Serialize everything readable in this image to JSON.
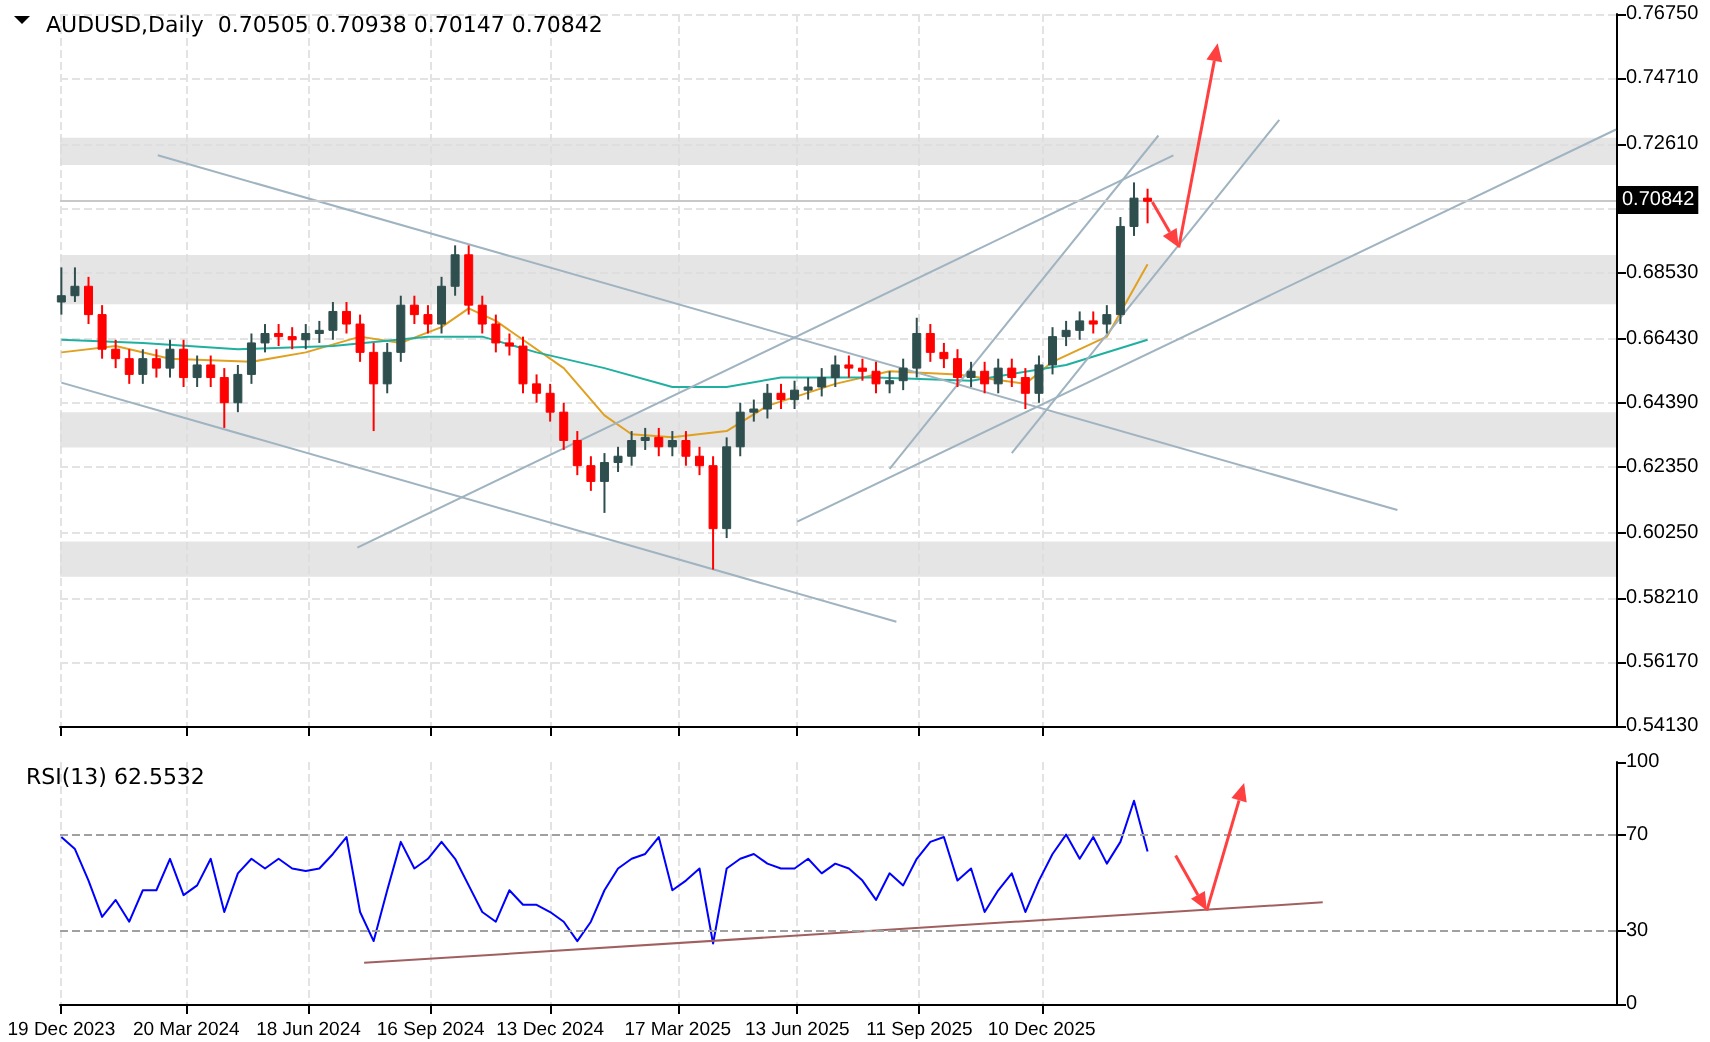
{
  "chart_data": [
    {
      "type": "candlestick",
      "title": "AUDUSD,Daily  0.70505 0.70938 0.70147 0.70842",
      "tick_labels": "y",
      "grid": true,
      "x": [
        "2023-12-19",
        "2023-12-29",
        "2024-01-08",
        "2024-01-18",
        "2024-01-28",
        "2024-02-07",
        "2024-02-17",
        "2024-02-27",
        "2024-03-08",
        "2024-03-18",
        "2024-03-28",
        "2024-04-07",
        "2024-04-17",
        "2024-04-27",
        "2024-05-07",
        "2024-05-17",
        "2024-05-27",
        "2024-06-06",
        "2024-06-16",
        "2024-06-26",
        "2024-07-06",
        "2024-07-16",
        "2024-07-26",
        "2024-08-05",
        "2024-08-15",
        "2024-08-25",
        "2024-09-04",
        "2024-09-14",
        "2024-09-24",
        "2024-10-04",
        "2024-10-14",
        "2024-10-24",
        "2024-11-03",
        "2024-11-13",
        "2024-11-23",
        "2024-12-03",
        "2024-12-13",
        "2024-12-23",
        "2025-01-02",
        "2025-01-12",
        "2025-01-22",
        "2025-02-01",
        "2025-02-11",
        "2025-02-21",
        "2025-03-03",
        "2025-03-13",
        "2025-03-23",
        "2025-04-02",
        "2025-04-12",
        "2025-04-22",
        "2025-05-02",
        "2025-05-12",
        "2025-05-22",
        "2025-06-01",
        "2025-06-11",
        "2025-06-21",
        "2025-07-01",
        "2025-07-11",
        "2025-07-21",
        "2025-07-31",
        "2025-08-10",
        "2025-08-20",
        "2025-08-30",
        "2025-09-09",
        "2025-09-19",
        "2025-09-29",
        "2025-10-09",
        "2025-10-19",
        "2025-10-29",
        "2025-11-08",
        "2025-11-18",
        "2025-11-28",
        "2025-12-08",
        "2025-12-18",
        "2025-12-28",
        "2026-01-07",
        "2026-01-17",
        "2026-01-27",
        "2026-02-06",
        "2026-02-16",
        "2026-02-26"
      ],
      "ohlc": [
        [
          0.676,
          0.687,
          0.672,
          0.678
        ],
        [
          0.678,
          0.687,
          0.676,
          0.681
        ],
        [
          0.681,
          0.684,
          0.669,
          0.672
        ],
        [
          0.672,
          0.675,
          0.658,
          0.661
        ],
        [
          0.661,
          0.664,
          0.655,
          0.658
        ],
        [
          0.658,
          0.661,
          0.65,
          0.653
        ],
        [
          0.653,
          0.661,
          0.65,
          0.658
        ],
        [
          0.658,
          0.661,
          0.652,
          0.655
        ],
        [
          0.655,
          0.664,
          0.652,
          0.661
        ],
        [
          0.661,
          0.664,
          0.649,
          0.652
        ],
        [
          0.652,
          0.659,
          0.649,
          0.656
        ],
        [
          0.656,
          0.659,
          0.649,
          0.652
        ],
        [
          0.652,
          0.655,
          0.636,
          0.644
        ],
        [
          0.644,
          0.656,
          0.641,
          0.653
        ],
        [
          0.653,
          0.666,
          0.65,
          0.663
        ],
        [
          0.663,
          0.669,
          0.66,
          0.666
        ],
        [
          0.666,
          0.669,
          0.662,
          0.665
        ],
        [
          0.665,
          0.668,
          0.661,
          0.664
        ],
        [
          0.664,
          0.669,
          0.661,
          0.666
        ],
        [
          0.666,
          0.67,
          0.663,
          0.667
        ],
        [
          0.667,
          0.676,
          0.664,
          0.673
        ],
        [
          0.673,
          0.676,
          0.666,
          0.669
        ],
        [
          0.669,
          0.672,
          0.657,
          0.66
        ],
        [
          0.66,
          0.663,
          0.635,
          0.65
        ],
        [
          0.65,
          0.663,
          0.647,
          0.66
        ],
        [
          0.66,
          0.678,
          0.657,
          0.675
        ],
        [
          0.675,
          0.678,
          0.669,
          0.672
        ],
        [
          0.672,
          0.675,
          0.666,
          0.669
        ],
        [
          0.669,
          0.684,
          0.666,
          0.681
        ],
        [
          0.681,
          0.694,
          0.678,
          0.691
        ],
        [
          0.691,
          0.694,
          0.672,
          0.675
        ],
        [
          0.675,
          0.678,
          0.666,
          0.669
        ],
        [
          0.669,
          0.672,
          0.66,
          0.663
        ],
        [
          0.663,
          0.666,
          0.659,
          0.662
        ],
        [
          0.662,
          0.665,
          0.647,
          0.65
        ],
        [
          0.65,
          0.653,
          0.644,
          0.647
        ],
        [
          0.647,
          0.65,
          0.638,
          0.641
        ],
        [
          0.641,
          0.644,
          0.629,
          0.632
        ],
        [
          0.632,
          0.635,
          0.621,
          0.624
        ],
        [
          0.624,
          0.627,
          0.616,
          0.619
        ],
        [
          0.619,
          0.628,
          0.609,
          0.625
        ],
        [
          0.625,
          0.63,
          0.622,
          0.627
        ],
        [
          0.627,
          0.635,
          0.624,
          0.632
        ],
        [
          0.632,
          0.636,
          0.629,
          0.633
        ],
        [
          0.633,
          0.636,
          0.627,
          0.63
        ],
        [
          0.63,
          0.635,
          0.627,
          0.632
        ],
        [
          0.632,
          0.635,
          0.624,
          0.627
        ],
        [
          0.627,
          0.63,
          0.621,
          0.624
        ],
        [
          0.624,
          0.627,
          0.591,
          0.604
        ],
        [
          0.604,
          0.633,
          0.601,
          0.63
        ],
        [
          0.63,
          0.644,
          0.627,
          0.641
        ],
        [
          0.641,
          0.645,
          0.638,
          0.642
        ],
        [
          0.642,
          0.65,
          0.639,
          0.647
        ],
        [
          0.647,
          0.65,
          0.642,
          0.645
        ],
        [
          0.645,
          0.651,
          0.642,
          0.648
        ],
        [
          0.648,
          0.652,
          0.645,
          0.649
        ],
        [
          0.649,
          0.655,
          0.646,
          0.652
        ],
        [
          0.652,
          0.659,
          0.649,
          0.656
        ],
        [
          0.656,
          0.659,
          0.652,
          0.655
        ],
        [
          0.655,
          0.658,
          0.651,
          0.654
        ],
        [
          0.654,
          0.657,
          0.647,
          0.65
        ],
        [
          0.65,
          0.654,
          0.647,
          0.651
        ],
        [
          0.651,
          0.658,
          0.648,
          0.655
        ],
        [
          0.655,
          0.671,
          0.652,
          0.666
        ],
        [
          0.666,
          0.669,
          0.657,
          0.66
        ],
        [
          0.66,
          0.663,
          0.655,
          0.658
        ],
        [
          0.658,
          0.661,
          0.649,
          0.652
        ],
        [
          0.652,
          0.657,
          0.649,
          0.654
        ],
        [
          0.654,
          0.657,
          0.647,
          0.65
        ],
        [
          0.65,
          0.658,
          0.647,
          0.655
        ],
        [
          0.655,
          0.658,
          0.649,
          0.652
        ],
        [
          0.652,
          0.655,
          0.642,
          0.647
        ],
        [
          0.647,
          0.659,
          0.644,
          0.656
        ],
        [
          0.656,
          0.668,
          0.653,
          0.665
        ],
        [
          0.665,
          0.67,
          0.662,
          0.667
        ],
        [
          0.667,
          0.673,
          0.664,
          0.67
        ],
        [
          0.67,
          0.673,
          0.666,
          0.669
        ],
        [
          0.669,
          0.675,
          0.666,
          0.672
        ],
        [
          0.672,
          0.703,
          0.669,
          0.7
        ],
        [
          0.7,
          0.714,
          0.697,
          0.709
        ],
        [
          0.709,
          0.712,
          0.701,
          0.708
        ]
      ],
      "colors": [
        "#2f4f4f",
        "#2f4f4f",
        "#ff0000",
        "#ff0000",
        "#ff0000",
        "#ff0000",
        "#2f4f4f",
        "#ff0000",
        "#2f4f4f",
        "#ff0000",
        "#2f4f4f",
        "#ff0000",
        "#ff0000",
        "#2f4f4f",
        "#2f4f4f",
        "#2f4f4f",
        "#ff0000",
        "#ff0000",
        "#2f4f4f",
        "#2f4f4f",
        "#2f4f4f",
        "#ff0000",
        "#ff0000",
        "#ff0000",
        "#2f4f4f",
        "#2f4f4f",
        "#ff0000",
        "#ff0000",
        "#2f4f4f",
        "#2f4f4f",
        "#ff0000",
        "#ff0000",
        "#ff0000",
        "#ff0000",
        "#ff0000",
        "#ff0000",
        "#ff0000",
        "#ff0000",
        "#ff0000",
        "#ff0000",
        "#2f4f4f",
        "#2f4f4f",
        "#2f4f4f",
        "#2f4f4f",
        "#ff0000",
        "#2f4f4f",
        "#ff0000",
        "#ff0000",
        "#ff0000",
        "#2f4f4f",
        "#2f4f4f",
        "#2f4f4f",
        "#2f4f4f",
        "#ff0000",
        "#2f4f4f",
        "#2f4f4f",
        "#2f4f4f",
        "#2f4f4f",
        "#ff0000",
        "#ff0000",
        "#ff0000",
        "#2f4f4f",
        "#2f4f4f",
        "#2f4f4f",
        "#ff0000",
        "#ff0000",
        "#ff0000",
        "#2f4f4f",
        "#ff0000",
        "#2f4f4f",
        "#ff0000",
        "#ff0000",
        "#2f4f4f",
        "#2f4f4f",
        "#2f4f4f",
        "#2f4f4f",
        "#ff0000",
        "#2f4f4f",
        "#2f4f4f",
        "#2f4f4f",
        "#ff0000"
      ],
      "series": [
        {
          "type": "line",
          "color": "#e0a020",
          "x": [
            "2023-12-19",
            "2024-01-28",
            "2024-03-08",
            "2024-05-07",
            "2024-06-16",
            "2024-07-26",
            "2024-08-25",
            "2024-09-24",
            "2024-10-14",
            "2024-11-03",
            "2024-12-23",
            "2025-01-22",
            "2025-02-11",
            "2025-03-13",
            "2025-04-22",
            "2025-05-22",
            "2025-07-11",
            "2025-08-20",
            "2025-10-09",
            "2025-11-28",
            "2025-12-18",
            "2026-01-27",
            "2026-02-26"
          ],
          "values": [
            0.66,
            0.662,
            0.658,
            0.657,
            0.66,
            0.665,
            0.663,
            0.668,
            0.674,
            0.67,
            0.655,
            0.64,
            0.634,
            0.633,
            0.635,
            0.643,
            0.65,
            0.654,
            0.653,
            0.65,
            0.657,
            0.665,
            0.688
          ]
        },
        {
          "type": "line",
          "color": "#20b0a0",
          "x": [
            "2023-12-19",
            "2024-02-17",
            "2024-04-27",
            "2024-07-06",
            "2024-09-14",
            "2024-10-24",
            "2024-12-03",
            "2025-01-22",
            "2025-03-13",
            "2025-04-22",
            "2025-06-01",
            "2025-08-10",
            "2025-10-19",
            "2025-12-28",
            "2026-02-26"
          ],
          "values": [
            0.664,
            0.663,
            0.661,
            0.662,
            0.665,
            0.665,
            0.66,
            0.655,
            0.649,
            0.649,
            0.652,
            0.652,
            0.651,
            0.656,
            0.664
          ]
        },
        {
          "type": "line",
          "color": "#9fb3c0",
          "x": [
            "2024-02-28",
            "2026-08-29"
          ],
          "values": [
            0.7226,
            0.6099
          ]
        },
        {
          "type": "line",
          "color": "#9fb3c0",
          "x": [
            "2023-12-19",
            "2025-08-25"
          ],
          "values": [
            0.6504,
            0.5744
          ]
        },
        {
          "type": "line",
          "color": "#9fb3c0",
          "x": [
            "2024-07-24",
            "2026-03-17"
          ],
          "values": [
            0.598,
            0.7226
          ]
        },
        {
          "type": "line",
          "color": "#9fb3c0",
          "x": [
            "2025-06-13",
            "2027-02-06"
          ],
          "values": [
            0.6062,
            0.7308
          ]
        },
        {
          "type": "line",
          "color": "#9fb3c0",
          "x": [
            "2025-08-20",
            "2026-03-06"
          ],
          "values": [
            0.623,
            0.7289
          ]
        },
        {
          "type": "line",
          "color": "#9fb3c0",
          "x": [
            "2025-11-18",
            "2026-06-03"
          ],
          "values": [
            0.628,
            0.7339
          ]
        }
      ],
      "bands": [
        {
          "axis": "y",
          "from": 0.7195,
          "to": 0.7282,
          "color": "#dcdcdc"
        },
        {
          "axis": "y",
          "from": 0.6753,
          "to": 0.6909,
          "color": "#dcdcdc"
        },
        {
          "axis": "y",
          "from": 0.6298,
          "to": 0.641,
          "color": "#dcdcdc"
        },
        {
          "axis": "y",
          "from": 0.5887,
          "to": 0.5999,
          "color": "#dcdcdc"
        }
      ],
      "ref_lines": [
        {
          "axis": "y",
          "value": 0.70842,
          "label": "0.70842",
          "color": "#c8c8c8"
        }
      ],
      "xlim": [
        "2023-12-18",
        "2027-02-06"
      ],
      "xticks": [
        {
          "value": "2023-12-19",
          "label": null
        },
        {
          "value": "2024-03-20",
          "label": null
        },
        {
          "value": "2024-06-18",
          "label": null
        },
        {
          "value": "2024-09-16",
          "label": null
        },
        {
          "value": "2024-12-13",
          "label": null
        },
        {
          "value": "2025-03-17",
          "label": null
        },
        {
          "value": "2025-06-13",
          "label": null
        },
        {
          "value": "2025-09-11",
          "label": null
        },
        {
          "value": "2025-12-10",
          "label": null
        }
      ],
      "ylim": [
        0.5413,
        0.7675
      ],
      "yticks": [
        {
          "value": 0.5413,
          "label": "0.54130"
        },
        {
          "value": 0.5617,
          "label": "0.56170"
        },
        {
          "value": 0.5821,
          "label": "0.58210"
        },
        {
          "value": 0.6025,
          "label": "0.60250"
        },
        {
          "value": 0.6235,
          "label": "0.62350"
        },
        {
          "value": 0.6439,
          "label": "0.64390"
        },
        {
          "value": 0.6643,
          "label": "0.66430"
        },
        {
          "value": 0.6853,
          "label": "0.68530"
        },
        {
          "value": 0.7057,
          "label": null
        },
        {
          "value": 0.7261,
          "label": "0.72610"
        },
        {
          "value": 0.7471,
          "label": "0.74710"
        },
        {
          "value": 0.7675,
          "label": "0.76750"
        }
      ]
    },
    {
      "type": "line",
      "title": "RSI(13) 62.5532",
      "grid": "x",
      "series": [
        {
          "color": "#0000ff",
          "x": [
            "2023-12-19",
            "2023-12-29",
            "2024-01-08",
            "2024-01-18",
            "2024-01-28",
            "2024-02-07",
            "2024-02-17",
            "2024-02-27",
            "2024-03-08",
            "2024-03-18",
            "2024-03-28",
            "2024-04-07",
            "2024-04-17",
            "2024-04-27",
            "2024-05-07",
            "2024-05-17",
            "2024-05-27",
            "2024-06-06",
            "2024-06-16",
            "2024-06-26",
            "2024-07-06",
            "2024-07-16",
            "2024-07-26",
            "2024-08-05",
            "2024-08-15",
            "2024-08-25",
            "2024-09-04",
            "2024-09-14",
            "2024-09-24",
            "2024-10-04",
            "2024-10-14",
            "2024-10-24",
            "2024-11-03",
            "2024-11-13",
            "2024-11-23",
            "2024-12-03",
            "2024-12-13",
            "2024-12-23",
            "2025-01-02",
            "2025-01-12",
            "2025-01-22",
            "2025-02-01",
            "2025-02-11",
            "2025-02-21",
            "2025-03-03",
            "2025-03-13",
            "2025-03-23",
            "2025-04-02",
            "2025-04-12",
            "2025-04-22",
            "2025-05-02",
            "2025-05-12",
            "2025-05-22",
            "2025-06-01",
            "2025-06-11",
            "2025-06-21",
            "2025-07-01",
            "2025-07-11",
            "2025-07-21",
            "2025-07-31",
            "2025-08-10",
            "2025-08-20",
            "2025-08-30",
            "2025-09-09",
            "2025-09-19",
            "2025-09-29",
            "2025-10-09",
            "2025-10-19",
            "2025-10-29",
            "2025-11-08",
            "2025-11-18",
            "2025-11-28",
            "2025-12-08",
            "2025-12-18",
            "2025-12-28",
            "2026-01-07",
            "2026-01-17",
            "2026-01-27",
            "2026-02-06",
            "2026-02-16",
            "2026-02-26"
          ],
          "values": [
            69,
            64,
            51,
            36,
            43,
            34,
            47,
            47,
            60,
            45,
            49,
            60,
            38,
            54,
            60,
            56,
            60,
            56,
            55,
            56,
            62,
            69,
            38,
            26,
            47,
            67,
            56,
            60,
            67,
            60,
            49,
            38,
            34,
            47,
            41,
            41,
            38,
            34,
            26,
            34,
            47,
            56,
            60,
            62,
            69,
            47,
            51,
            56,
            25,
            56,
            60,
            62,
            58,
            56,
            56,
            60,
            54,
            58,
            56,
            51,
            43,
            54,
            49,
            60,
            67,
            69,
            51,
            56,
            38,
            47,
            54,
            38,
            51,
            62,
            70,
            60,
            69,
            58,
            67,
            84,
            63
          ]
        },
        {
          "color": "#a06060",
          "x": [
            "2024-07-29",
            "2026-07-05"
          ],
          "values": [
            17,
            42
          ]
        }
      ],
      "ref_lines": [
        {
          "axis": "y",
          "value": 30,
          "color": "#a0a0a0",
          "line_style": "dashed"
        },
        {
          "axis": "y",
          "value": 70,
          "color": "#a0a0a0",
          "line_style": "dashed"
        }
      ],
      "xlim": [
        "2023-12-18",
        "2027-02-06"
      ],
      "xticks": [
        {
          "value": "2023-12-19",
          "label": "19 Dec 2023"
        },
        {
          "value": "2024-03-20",
          "label": "20 Mar 2024"
        },
        {
          "value": "2024-06-18",
          "label": "18 Jun 2024"
        },
        {
          "value": "2024-09-16",
          "label": "16 Sep 2024"
        },
        {
          "value": "2024-12-13",
          "label": "13 Dec 2024"
        },
        {
          "value": "2025-03-17",
          "label": "17 Mar 2025"
        },
        {
          "value": "2025-06-13",
          "label": "13 Jun 2025"
        },
        {
          "value": "2025-09-11",
          "label": "11 Sep 2025"
        },
        {
          "value": "2025-12-10",
          "label": "10 Dec 2025"
        }
      ],
      "ylim": [
        0,
        100
      ],
      "yticks": [
        0,
        30,
        70,
        100
      ]
    }
  ]
}
